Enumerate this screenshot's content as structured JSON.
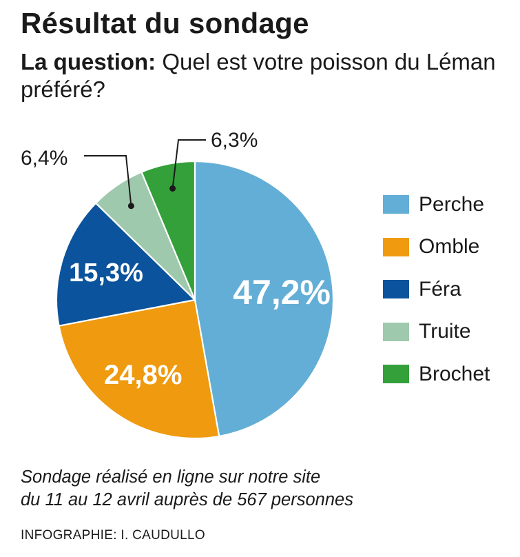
{
  "title": "Résultat du sondage",
  "question": {
    "label": "La question:",
    "text": " Quel est votre poisson du Léman préféré?"
  },
  "chart_data": {
    "type": "pie",
    "categories": [
      "Perche",
      "Omble",
      "Féra",
      "Truite",
      "Brochet"
    ],
    "values": [
      47.2,
      24.8,
      15.3,
      6.4,
      6.3
    ],
    "value_labels": [
      "47,2%",
      "24,8%",
      "15,3%",
      "6,4%",
      "6,3%"
    ],
    "colors": [
      "#63aed6",
      "#ef9a0f",
      "#0b539c",
      "#9ec9ad",
      "#33a03a"
    ],
    "legend_position": "right",
    "start": "12 o'clock, clockwise"
  },
  "note": {
    "line1": "Sondage réalisé en ligne sur notre site",
    "line2": "du 11 au 12 avril auprès de 567 personnes"
  },
  "credit": "INFOGRAPHIE: I. CAUDULLO"
}
